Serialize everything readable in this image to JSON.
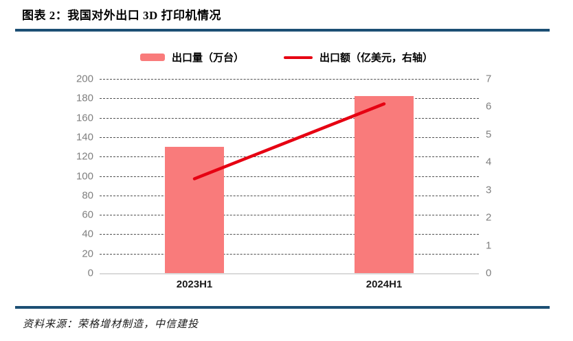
{
  "header": {
    "title": "图表 2：我国对外出口 3D 打印机情况"
  },
  "legend": [
    {
      "label": "出口量（万台）",
      "type": "bar",
      "color": "#F97B7B"
    },
    {
      "label": "出口额（亿美元，右轴）",
      "type": "line",
      "color": "#E60012"
    }
  ],
  "chart_data": {
    "type": "bar+line combo",
    "categories": [
      "2023H1",
      "2024H1"
    ],
    "series": [
      {
        "name": "出口量（万台）",
        "type": "bar",
        "axis": "left",
        "values": [
          130,
          182
        ],
        "color": "#F97B7B"
      },
      {
        "name": "出口额（亿美元，右轴）",
        "type": "line",
        "axis": "right",
        "values": [
          3.4,
          6.1
        ],
        "color": "#E60012"
      }
    ],
    "left_axis": {
      "min": 0,
      "max": 200,
      "ticks": [
        200,
        180,
        160,
        140,
        120,
        100,
        80,
        60,
        40,
        20,
        0
      ]
    },
    "right_axis": {
      "min": 0,
      "max": 7,
      "ticks": [
        7,
        6,
        5,
        4,
        3,
        2,
        1,
        0
      ]
    },
    "grid": "horizontal dashed",
    "legend_position": "top center"
  },
  "footer": {
    "source": "资料来源：荣格增材制造，中信建投"
  },
  "colors": {
    "accent_rule": "#1C4F74",
    "bar": "#F97B7B",
    "line": "#E60012",
    "axis_text": "#7F7F7F",
    "grid": "#4D4D4D",
    "baseline": "#D9D9D9",
    "title_text": "#000000"
  }
}
